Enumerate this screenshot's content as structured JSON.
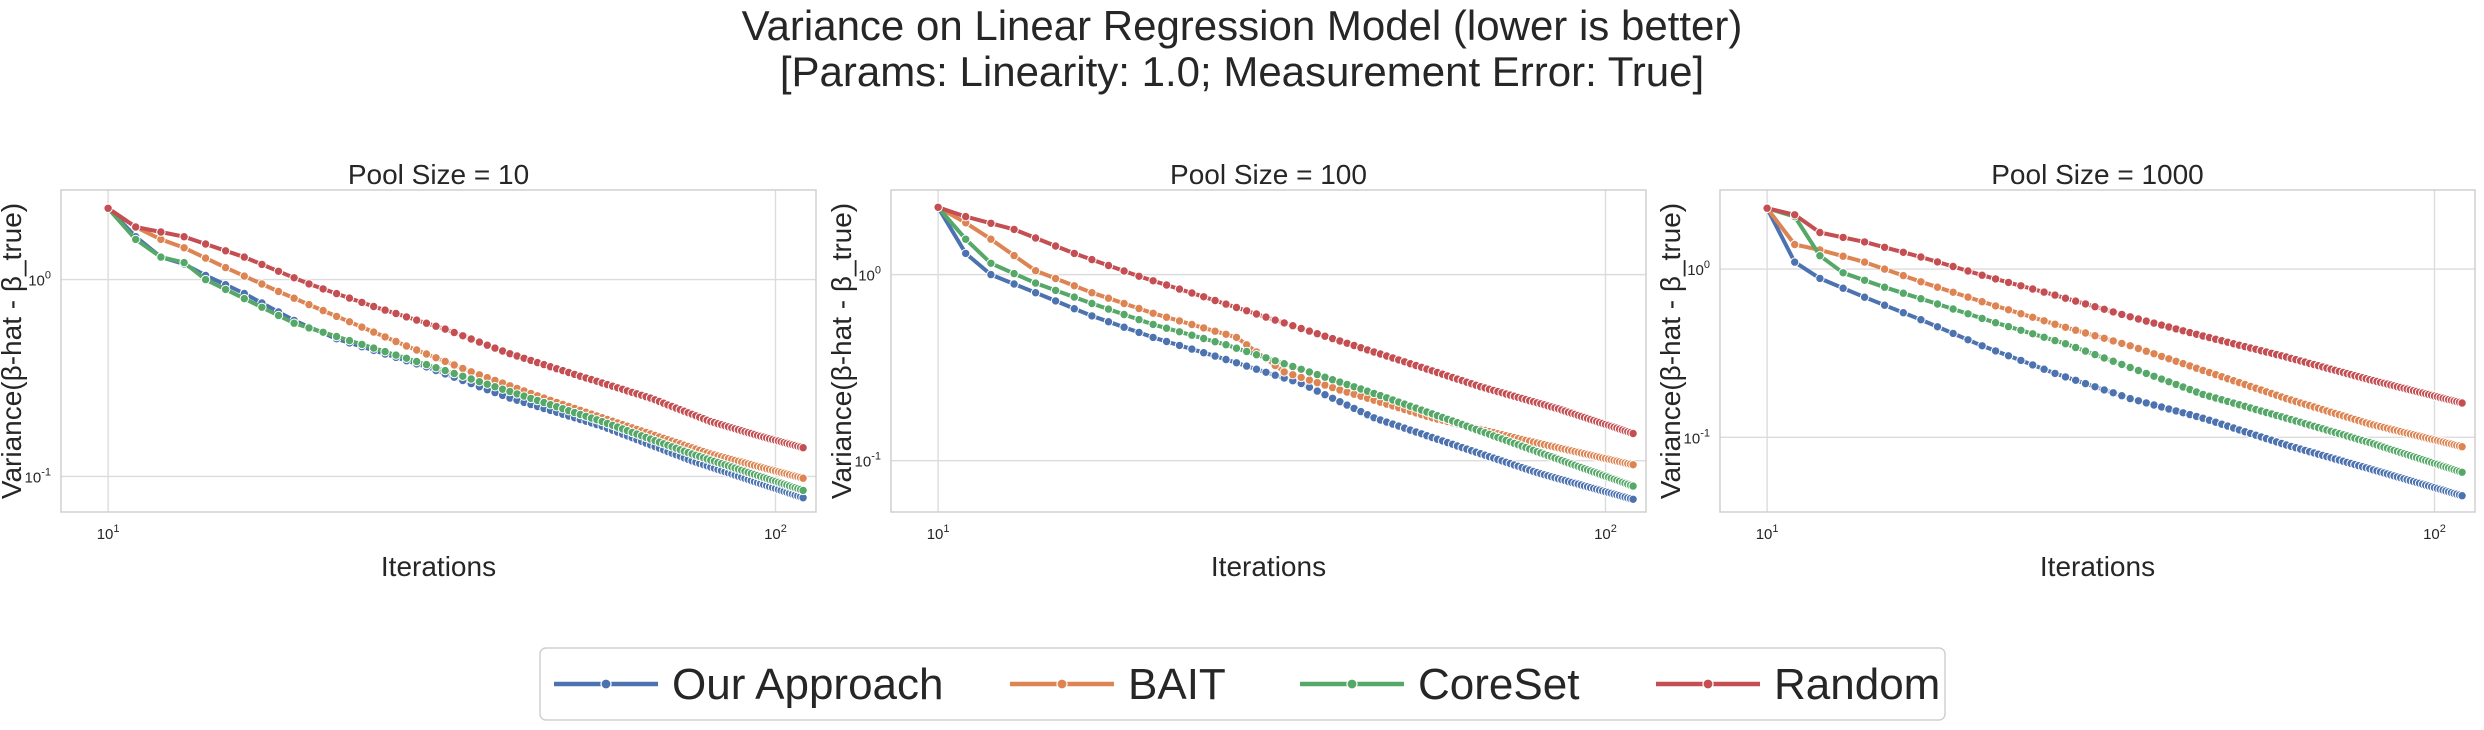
{
  "figure": {
    "title_line1": "Variance on Linear Regression Model (lower is better)",
    "title_line2": "[Params: Linearity: 1.0; Measurement Error: True]"
  },
  "colors": {
    "Our Approach": "#4c72b0",
    "BAIT": "#dd8452",
    "CoreSet": "#55a868",
    "Random": "#c44e52"
  },
  "legend": {
    "placement": "bottom-center",
    "items": [
      "Our Approach",
      "BAIT",
      "CoreSet",
      "Random"
    ]
  },
  "chart_data": [
    {
      "type": "line",
      "title": "Pool Size = 10",
      "xlabel": "Iterations",
      "ylabel": "Variance(β-hat - β_true)",
      "xscale": "log",
      "yscale": "log",
      "xlim": [
        8.5,
        115
      ],
      "ylim": [
        0.066,
        2.85
      ],
      "xticks": [
        10,
        100
      ],
      "xtick_labels": [
        "10^1",
        "10^2"
      ],
      "yticks": [
        0.1,
        1
      ],
      "ytick_labels": [
        "10^-1",
        "10^0"
      ],
      "grid": true,
      "x_range": [
        10,
        110
      ],
      "series": [
        {
          "name": "Our Approach",
          "knots_x": [
            10,
            11,
            12,
            13,
            14,
            16,
            19,
            22,
            30,
            40,
            55,
            75,
            95,
            110
          ],
          "knots_y": [
            2.3,
            1.65,
            1.3,
            1.2,
            1.05,
            0.85,
            0.62,
            0.5,
            0.36,
            0.25,
            0.18,
            0.12,
            0.092,
            0.078
          ]
        },
        {
          "name": "BAIT",
          "knots_x": [
            10,
            11,
            12,
            13,
            15,
            18,
            22,
            28,
            35,
            45,
            60,
            80,
            110
          ],
          "knots_y": [
            2.3,
            1.85,
            1.6,
            1.45,
            1.15,
            0.87,
            0.65,
            0.46,
            0.34,
            0.25,
            0.18,
            0.13,
            0.098
          ]
        },
        {
          "name": "CoreSet",
          "knots_x": [
            10,
            11,
            12,
            13,
            14,
            16,
            19,
            23,
            30,
            40,
            55,
            75,
            95,
            110
          ],
          "knots_y": [
            2.3,
            1.6,
            1.3,
            1.22,
            1.0,
            0.8,
            0.6,
            0.49,
            0.37,
            0.27,
            0.19,
            0.13,
            0.1,
            0.085
          ]
        },
        {
          "name": "Random",
          "knots_x": [
            10,
            11,
            13,
            16,
            20,
            25,
            32,
            40,
            50,
            65,
            80,
            95,
            110
          ],
          "knots_y": [
            2.3,
            1.85,
            1.65,
            1.3,
            0.95,
            0.73,
            0.56,
            0.42,
            0.33,
            0.25,
            0.19,
            0.16,
            0.14
          ]
        }
      ]
    },
    {
      "type": "line",
      "title": "Pool Size = 100",
      "xlabel": "Iterations",
      "ylabel": "Variance(β-hat - β_true)",
      "xscale": "log",
      "yscale": "log",
      "xlim": [
        8.5,
        115
      ],
      "ylim": [
        0.053,
        2.85
      ],
      "xticks": [
        10,
        100
      ],
      "xtick_labels": [
        "10^1",
        "10^2"
      ],
      "yticks": [
        0.1,
        1
      ],
      "ytick_labels": [
        "10^-1",
        "10^0"
      ],
      "grid": true,
      "x_range": [
        10,
        110
      ],
      "series": [
        {
          "name": "Our Approach",
          "knots_x": [
            10,
            11,
            12,
            14,
            17,
            21,
            27,
            35,
            45,
            60,
            80,
            110
          ],
          "knots_y": [
            2.3,
            1.3,
            1.0,
            0.8,
            0.6,
            0.46,
            0.35,
            0.26,
            0.17,
            0.12,
            0.085,
            0.062
          ]
        },
        {
          "name": "BAIT",
          "knots_x": [
            10,
            11,
            12,
            14,
            17,
            21,
            28,
            33,
            40,
            55,
            75,
            110
          ],
          "knots_y": [
            2.3,
            1.9,
            1.55,
            1.05,
            0.8,
            0.62,
            0.46,
            0.3,
            0.24,
            0.17,
            0.13,
            0.095
          ]
        },
        {
          "name": "CoreSet",
          "knots_x": [
            10,
            11,
            12,
            14,
            17,
            21,
            27,
            35,
            45,
            60,
            80,
            110
          ],
          "knots_y": [
            2.3,
            1.55,
            1.15,
            0.9,
            0.7,
            0.54,
            0.42,
            0.31,
            0.23,
            0.16,
            0.11,
            0.073
          ]
        },
        {
          "name": "Random",
          "knots_x": [
            10,
            11,
            13,
            16,
            20,
            25,
            32,
            40,
            50,
            65,
            85,
            110
          ],
          "knots_y": [
            2.3,
            2.05,
            1.75,
            1.3,
            0.98,
            0.76,
            0.57,
            0.44,
            0.34,
            0.25,
            0.19,
            0.14
          ]
        }
      ]
    },
    {
      "type": "line",
      "title": "Pool Size = 1000",
      "xlabel": "Iterations",
      "ylabel": "Variance(β-hat - β_true)",
      "xscale": "log",
      "yscale": "log",
      "xlim": [
        8.5,
        115
      ],
      "ylim": [
        0.036,
        2.95
      ],
      "xticks": [
        10,
        100
      ],
      "xtick_labels": [
        "10^1",
        "10^2"
      ],
      "yticks": [
        0.1,
        1
      ],
      "ytick_labels": [
        "10^-1",
        "10^0"
      ],
      "grid": true,
      "x_range": [
        10,
        110
      ],
      "series": [
        {
          "name": "Our Approach",
          "knots_x": [
            10,
            11,
            12,
            14,
            17,
            21,
            27,
            35,
            45,
            60,
            80,
            110
          ],
          "knots_y": [
            2.3,
            1.1,
            0.88,
            0.68,
            0.5,
            0.35,
            0.24,
            0.17,
            0.13,
            0.09,
            0.065,
            0.045
          ]
        },
        {
          "name": "BAIT",
          "knots_x": [
            10,
            11,
            12,
            14,
            17,
            21,
            27,
            35,
            45,
            60,
            80,
            110
          ],
          "knots_y": [
            2.3,
            1.4,
            1.3,
            1.1,
            0.84,
            0.64,
            0.47,
            0.35,
            0.25,
            0.17,
            0.12,
            0.088
          ]
        },
        {
          "name": "CoreSet",
          "knots_x": [
            10,
            11,
            12,
            13,
            15,
            18,
            22,
            28,
            35,
            45,
            60,
            80,
            110
          ],
          "knots_y": [
            2.3,
            2.05,
            1.2,
            0.95,
            0.78,
            0.62,
            0.48,
            0.36,
            0.26,
            0.18,
            0.13,
            0.093,
            0.062
          ]
        },
        {
          "name": "Random",
          "knots_x": [
            10,
            11,
            12,
            14,
            17,
            21,
            27,
            35,
            45,
            60,
            80,
            110
          ],
          "knots_y": [
            2.3,
            2.1,
            1.65,
            1.45,
            1.18,
            0.92,
            0.7,
            0.52,
            0.4,
            0.3,
            0.22,
            0.16
          ]
        }
      ]
    }
  ]
}
